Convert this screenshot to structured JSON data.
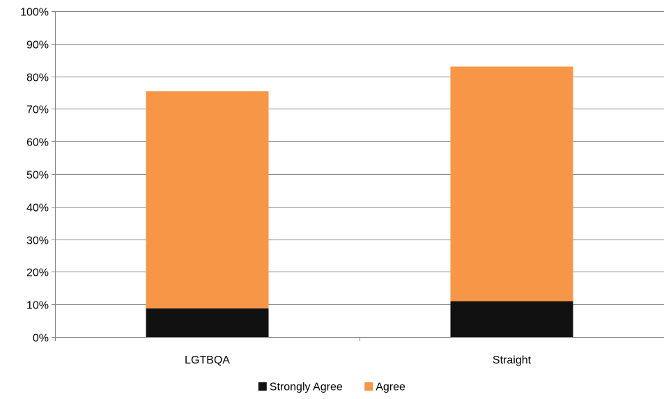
{
  "chart_data": {
    "type": "bar",
    "stacked": true,
    "categories": [
      "LGTBQA",
      "Straight"
    ],
    "series": [
      {
        "name": "Strongly Agree",
        "values": [
          8.8,
          11
        ],
        "color": "#111111"
      },
      {
        "name": "Agree",
        "values": [
          66.6,
          72
        ],
        "color": "#F79646"
      }
    ],
    "ylim": [
      0,
      100
    ],
    "y_ticks": [
      "0%",
      "10%",
      "20%",
      "30%",
      "40%",
      "50%",
      "60%",
      "70%",
      "80%",
      "90%",
      "100%"
    ],
    "grid": true,
    "legend_position": "bottom",
    "axis_color": "#868686",
    "grid_color": "#868686"
  }
}
